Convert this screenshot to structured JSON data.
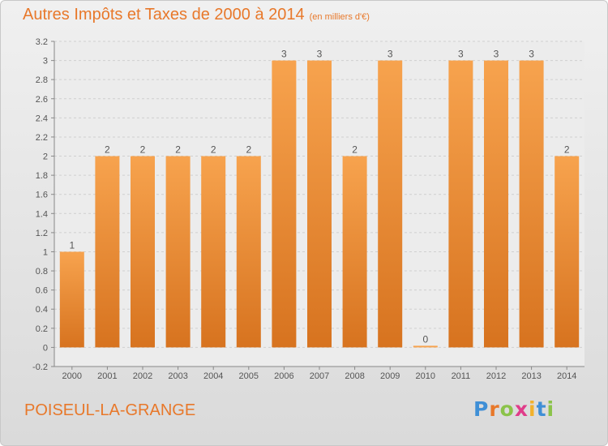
{
  "title": "Autres Impôts et Taxes de 2000 à 2014",
  "unit": "(en milliers d'€)",
  "city": "POISEUL-LA-GRANGE",
  "logo": {
    "text": "Proxiti",
    "letters": [
      {
        "ch": "P",
        "color": "#3f8fd6"
      },
      {
        "ch": "r",
        "color": "#e8782a"
      },
      {
        "ch": "o",
        "color": "#8bc34a"
      },
      {
        "ch": "x",
        "color": "#e03c8a"
      },
      {
        "ch": "i",
        "color": "#f2b12c"
      },
      {
        "ch": "t",
        "color": "#3f8fd6"
      },
      {
        "ch": "i",
        "color": "#8bc34a"
      }
    ]
  },
  "colors": {
    "accent": "#e8782a",
    "bar_light": "#f7a34e",
    "bar_dark": "#d7731f",
    "grid": "#cfcfcf"
  },
  "chart_data": {
    "type": "bar",
    "categories": [
      "2000",
      "2001",
      "2002",
      "2003",
      "2004",
      "2005",
      "2006",
      "2007",
      "2008",
      "2009",
      "2010",
      "2011",
      "2012",
      "2013",
      "2014"
    ],
    "values": [
      1,
      2,
      2,
      2,
      2,
      2,
      3,
      3,
      2,
      3,
      0,
      3,
      3,
      3,
      2
    ],
    "data_labels": [
      "1",
      "2",
      "2",
      "2",
      "2",
      "2",
      "3",
      "3",
      "2",
      "3",
      "0",
      "3",
      "3",
      "3",
      "2"
    ],
    "yticks": [
      "-0.2",
      "0",
      "0.2",
      "0.4",
      "0.6",
      "0.8",
      "1",
      "1.2",
      "1.4",
      "1.6",
      "1.8",
      "2",
      "2.2",
      "2.4",
      "2.6",
      "2.8",
      "3",
      "3.2"
    ],
    "ylim": [
      -0.2,
      3.2
    ],
    "grid": true,
    "legend": "none"
  }
}
